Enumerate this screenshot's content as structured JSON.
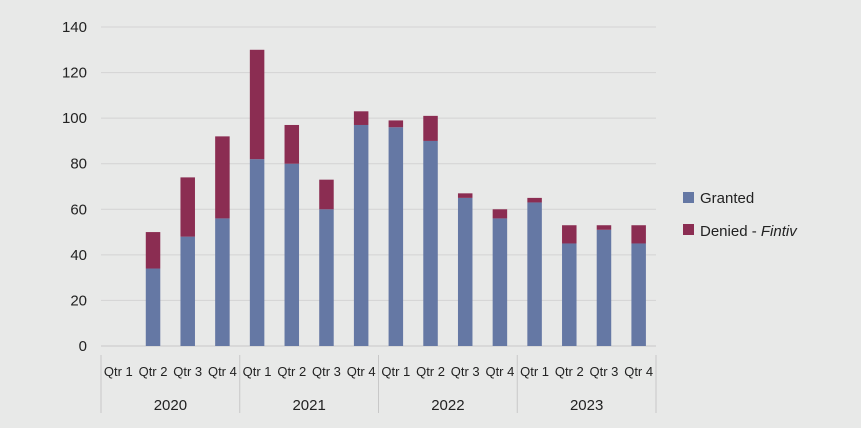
{
  "chart_data": {
    "type": "bar",
    "stacked": true,
    "categories": [
      "Qtr 1",
      "Qtr 2",
      "Qtr 3",
      "Qtr 4",
      "Qtr 1",
      "Qtr 2",
      "Qtr 3",
      "Qtr 4",
      "Qtr 1",
      "Qtr 2",
      "Qtr 3",
      "Qtr 4",
      "Qtr 1",
      "Qtr 2",
      "Qtr 3",
      "Qtr 4"
    ],
    "groups": [
      {
        "label": "2020",
        "count": 4
      },
      {
        "label": "2021",
        "count": 4
      },
      {
        "label": "2022",
        "count": 4
      },
      {
        "label": "2023",
        "count": 4
      }
    ],
    "series": [
      {
        "name": "Granted",
        "color": "#6578a4",
        "values": [
          0,
          34,
          48,
          56,
          82,
          80,
          60,
          97,
          96,
          90,
          65,
          56,
          63,
          45,
          51,
          45
        ]
      },
      {
        "name": "Denied - ",
        "name_em": "Fintiv",
        "color": "#8b2d52",
        "values": [
          0,
          16,
          26,
          36,
          48,
          17,
          13,
          6,
          3,
          11,
          2,
          4,
          2,
          8,
          2,
          8
        ]
      }
    ],
    "ylim": [
      0,
      140
    ],
    "yticks": [
      0,
      20,
      40,
      60,
      80,
      100,
      120,
      140
    ],
    "grid": true,
    "legend": "right"
  }
}
